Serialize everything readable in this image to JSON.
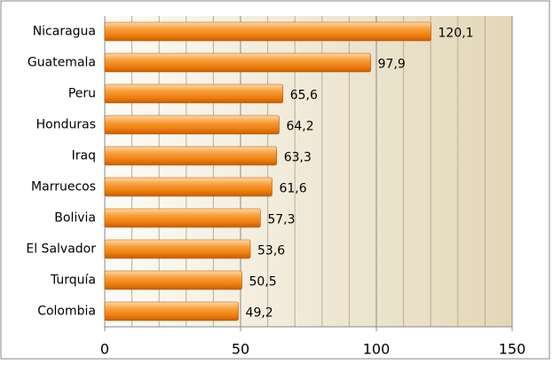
{
  "chart_data": {
    "type": "bar",
    "orientation": "horizontal",
    "categories": [
      "Nicaragua",
      "Guatemala",
      "Peru",
      "Honduras",
      "Iraq",
      "Marruecos",
      "Bolivia",
      "El Salvador",
      "Turquía",
      "Colombia"
    ],
    "values": [
      120.1,
      97.9,
      65.6,
      64.2,
      63.3,
      61.6,
      57.3,
      53.6,
      50.5,
      49.2
    ],
    "value_labels": [
      "120,1",
      "97,9",
      "65,6",
      "64,2",
      "63,3",
      "61,6",
      "57,3",
      "53,6",
      "50,5",
      "49,2"
    ],
    "color": "#f28a1e",
    "xlim": [
      0,
      150
    ],
    "xticks": [
      0,
      50,
      100,
      150
    ],
    "minor_grid": 10,
    "grid": true
  }
}
